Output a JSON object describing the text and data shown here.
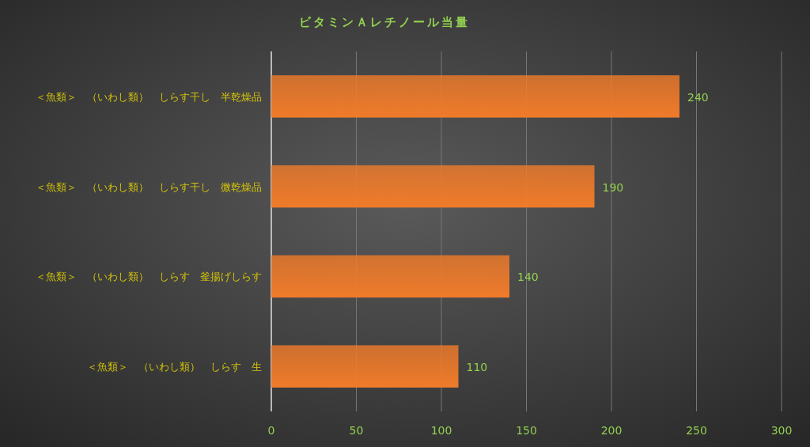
{
  "chart_data": {
    "type": "bar",
    "orientation": "horizontal",
    "title": "ビタミンＡレチノール当量",
    "categories": [
      "＜魚類＞　（いわし類）　しらす干し　半乾燥品",
      "＜魚類＞　（いわし類）　しらす干し　微乾燥品",
      "＜魚類＞　（いわし類）　しらす　釜揚げしらす",
      "＜魚類＞　（いわし類）　しらす　生"
    ],
    "values": [
      240,
      190,
      140,
      110
    ],
    "color": "#f07b2a",
    "xlim": [
      0,
      300
    ],
    "xticks": [
      0,
      50,
      100,
      150,
      200,
      250,
      300
    ],
    "grid": "x",
    "data_labels": true
  }
}
